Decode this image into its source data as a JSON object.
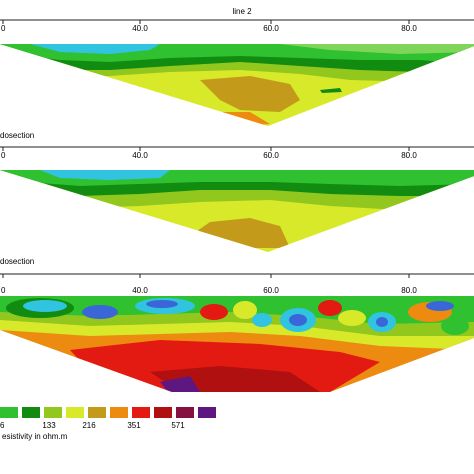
{
  "line_title": "line 2",
  "panel_labels": [
    "dosection",
    "dosection"
  ],
  "axis_ticks": [
    "0",
    "40.0",
    "60.0",
    "80.0"
  ],
  "legend": {
    "colors": [
      "#2fc12f",
      "#118c11",
      "#92c81e",
      "#d8e92a",
      "#c49a1b",
      "#ed8a10",
      "#e21a12",
      "#b01010",
      "#861040",
      "#5e1680"
    ],
    "labels": [
      "6",
      "133",
      "216",
      "351",
      "571"
    ],
    "units": "esistivity in ohm.m"
  },
  "chart_data": {
    "type": "heatmap",
    "title": "line 2",
    "x_ticks": [
      "0",
      "40.0",
      "60.0",
      "80.0"
    ],
    "panels": [
      {
        "label": "dosection",
        "dominant_classes": [
          "133",
          "216",
          "351"
        ],
        "max_class": "571"
      },
      {
        "label": "dosection",
        "dominant_classes": [
          "133",
          "216",
          "351"
        ],
        "max_class": "351"
      },
      {
        "label": "",
        "dominant_classes": [
          "6",
          "133",
          "216",
          "351",
          "571"
        ],
        "max_class": ">571"
      }
    ],
    "color_classes": [
      "6",
      "133",
      "216",
      "351",
      "571"
    ],
    "legend_placement": "bottom-left"
  }
}
